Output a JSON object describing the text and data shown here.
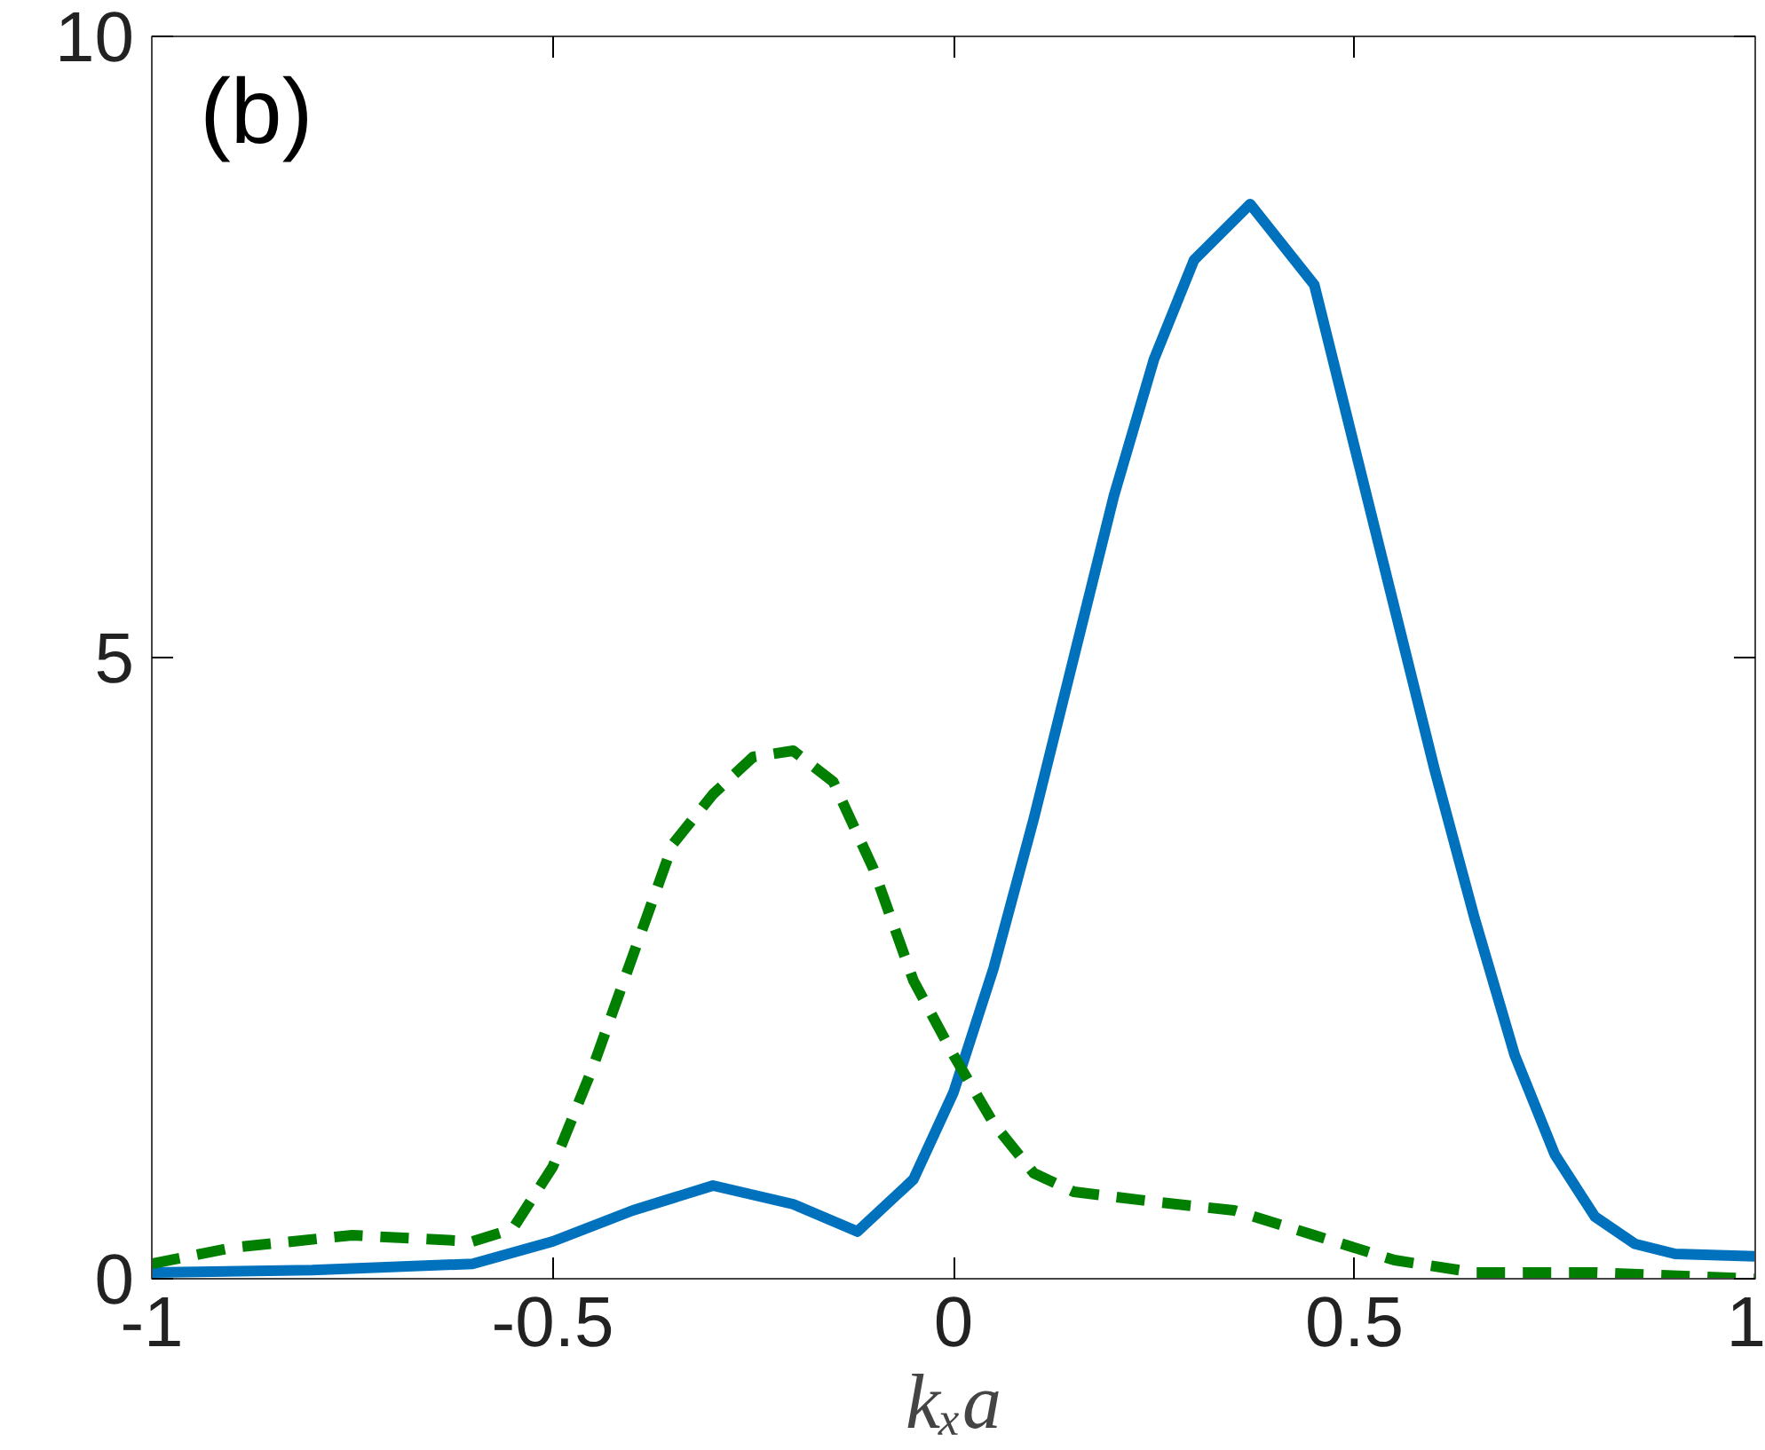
{
  "chart_data": {
    "type": "line",
    "xlabel": "kₓa",
    "annotations": [
      "(b)"
    ],
    "xlim": [
      -1,
      1
    ],
    "ylim": [
      0,
      10
    ],
    "xticks": [
      -1,
      -0.5,
      0,
      0.5,
      1
    ],
    "yticks": [
      0,
      5,
      10
    ],
    "grid": false,
    "series": [
      {
        "color": "#0072bd",
        "line_style": "solid",
        "x": [
          -1,
          -0.8,
          -0.6,
          -0.5,
          -0.4,
          -0.3,
          -0.2,
          -0.12,
          -0.05,
          0,
          0.05,
          0.1,
          0.15,
          0.2,
          0.25,
          0.3,
          0.37,
          0.45,
          0.5,
          0.55,
          0.6,
          0.65,
          0.7,
          0.75,
          0.8,
          0.85,
          0.9,
          1
        ],
        "values": [
          0.05,
          0.07,
          0.12,
          0.3,
          0.55,
          0.75,
          0.6,
          0.38,
          0.8,
          1.5,
          2.5,
          3.7,
          5.0,
          6.3,
          7.4,
          8.2,
          8.65,
          8.0,
          6.7,
          5.4,
          4.1,
          2.9,
          1.8,
          1.0,
          0.5,
          0.28,
          0.2,
          0.18
        ]
      },
      {
        "color": "#007f00",
        "line_style": "dashed",
        "x": [
          -1,
          -0.9,
          -0.75,
          -0.6,
          -0.55,
          -0.5,
          -0.45,
          -0.4,
          -0.35,
          -0.3,
          -0.25,
          -0.2,
          -0.15,
          -0.1,
          -0.05,
          0,
          0.05,
          0.1,
          0.15,
          0.25,
          0.35,
          0.45,
          0.55,
          0.65,
          0.8,
          1
        ],
        "values": [
          0.12,
          0.25,
          0.35,
          0.3,
          0.4,
          0.9,
          1.7,
          2.6,
          3.5,
          3.9,
          4.2,
          4.25,
          4.0,
          3.3,
          2.4,
          1.8,
          1.25,
          0.85,
          0.7,
          0.62,
          0.55,
          0.35,
          0.15,
          0.05,
          0.05,
          0.0
        ]
      }
    ]
  }
}
